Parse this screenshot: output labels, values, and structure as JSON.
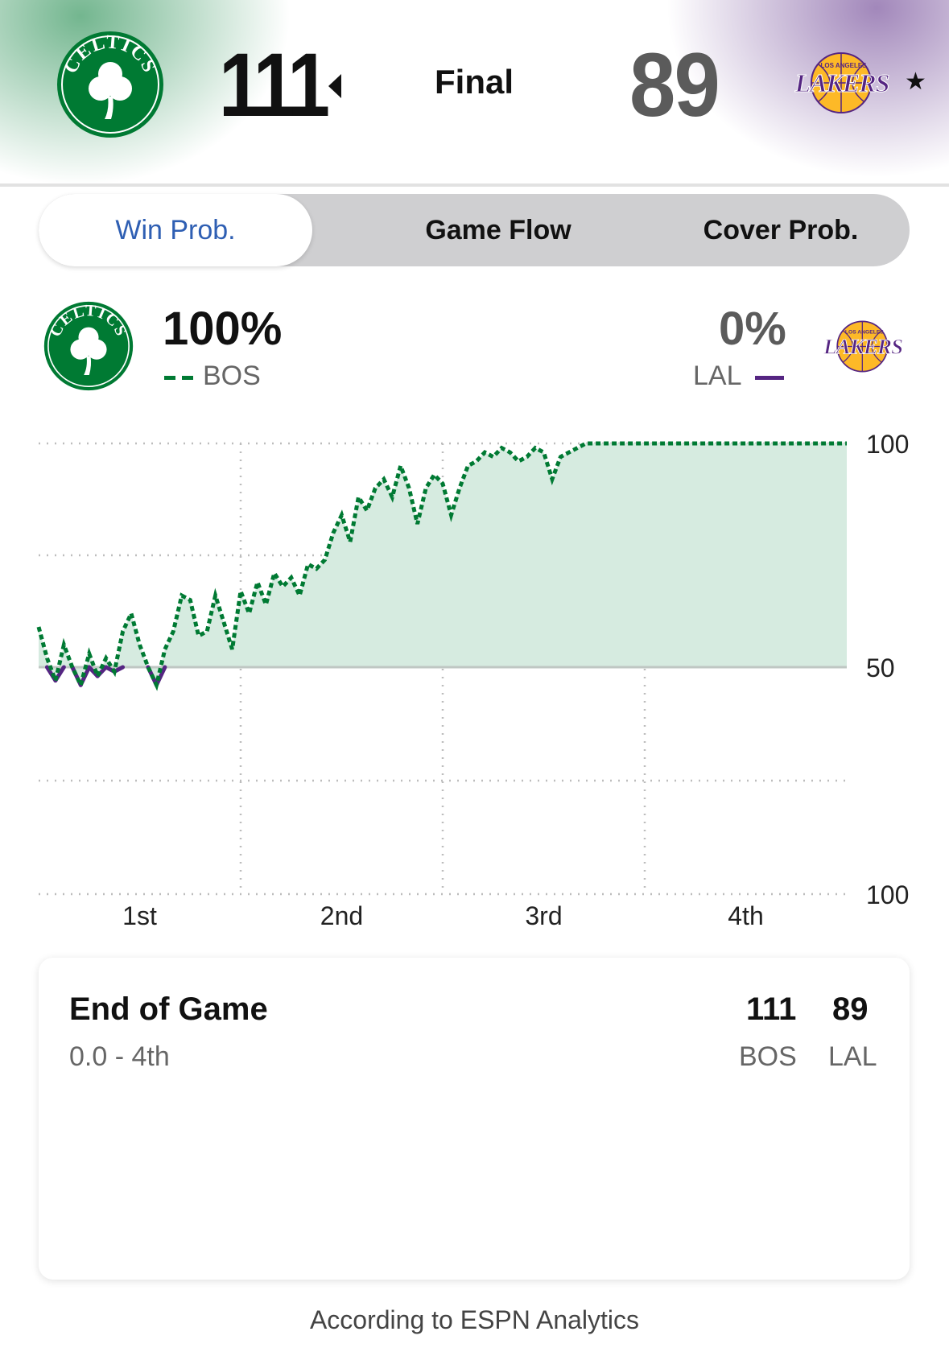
{
  "header": {
    "home": {
      "abbr": "BOS",
      "score": "111",
      "logo_text": "CELTICS",
      "logo_icon": "celtics-logo-icon"
    },
    "away": {
      "abbr": "LAL",
      "score": "89",
      "logo_text": "LAKERS",
      "logo_subtext": "LOS ANGELES",
      "logo_icon": "lakers-logo-icon"
    },
    "status": "Final",
    "favorite_icon": "★"
  },
  "tabs": [
    {
      "label": "Win Prob.",
      "active": true
    },
    {
      "label": "Game Flow",
      "active": false
    },
    {
      "label": "Cover Prob.",
      "active": false
    }
  ],
  "win_prob": {
    "home": {
      "pct": "100%",
      "abbr": "BOS"
    },
    "away": {
      "pct": "0%",
      "abbr": "LAL"
    }
  },
  "chart_data": {
    "type": "line",
    "y_tick_labels": [
      "100",
      "50",
      "100"
    ],
    "x_tick_labels": [
      "1st",
      "2nd",
      "3rd",
      "4th"
    ],
    "series": [
      {
        "name": "BOS",
        "color": "#007a33",
        "x": [
          0,
          0.5,
          1,
          1.5,
          2,
          2.5,
          3,
          3.5,
          4,
          4.5,
          5,
          5.5,
          6,
          6.5,
          7,
          7.5,
          8,
          8.5,
          9,
          9.5,
          10,
          10.5,
          11,
          11.5,
          12,
          12.5,
          13,
          13.5,
          14,
          14.5,
          15,
          15.5,
          16,
          16.5,
          17,
          17.5,
          18,
          18.5,
          19,
          19.5,
          20,
          20.5,
          21,
          21.5,
          22,
          22.5,
          23,
          23.5,
          24,
          24.5,
          25,
          25.5,
          26,
          26.5,
          27,
          27.5,
          28,
          28.5,
          29,
          29.5,
          30,
          30.5,
          31,
          31.5,
          32,
          32.5,
          33,
          33.5,
          34,
          34.5,
          35,
          35.5,
          36,
          36.5,
          37,
          37.5,
          38,
          38.5,
          39,
          39.5,
          40,
          41,
          42,
          43,
          44,
          45,
          46,
          47,
          48
        ],
        "y": [
          59,
          52,
          47,
          55,
          50,
          46,
          53,
          48,
          52,
          49,
          58,
          62,
          55,
          50,
          46,
          54,
          58,
          66,
          65,
          57,
          58,
          66,
          60,
          54,
          67,
          62,
          69,
          64,
          71,
          68,
          70,
          66,
          73,
          72,
          74,
          80,
          84,
          78,
          88,
          85,
          90,
          92,
          88,
          95,
          90,
          82,
          90,
          93,
          91,
          84,
          90,
          95,
          96,
          98,
          97,
          99,
          98,
          96,
          97,
          99,
          98,
          92,
          97,
          98,
          99,
          100,
          100,
          100,
          100,
          100,
          100,
          100,
          100,
          100,
          100,
          100,
          100,
          100,
          100,
          100,
          100,
          100,
          100,
          100,
          100,
          100,
          100,
          100,
          100
        ]
      },
      {
        "name": "LAL",
        "color": "#552582"
      }
    ]
  },
  "card": {
    "title": "End of Game",
    "subtitle": "0.0 - 4th",
    "home_score": "111",
    "away_score": "89",
    "home_abbr": "BOS",
    "away_abbr": "LAL"
  },
  "footer": "According to ESPN Analytics"
}
